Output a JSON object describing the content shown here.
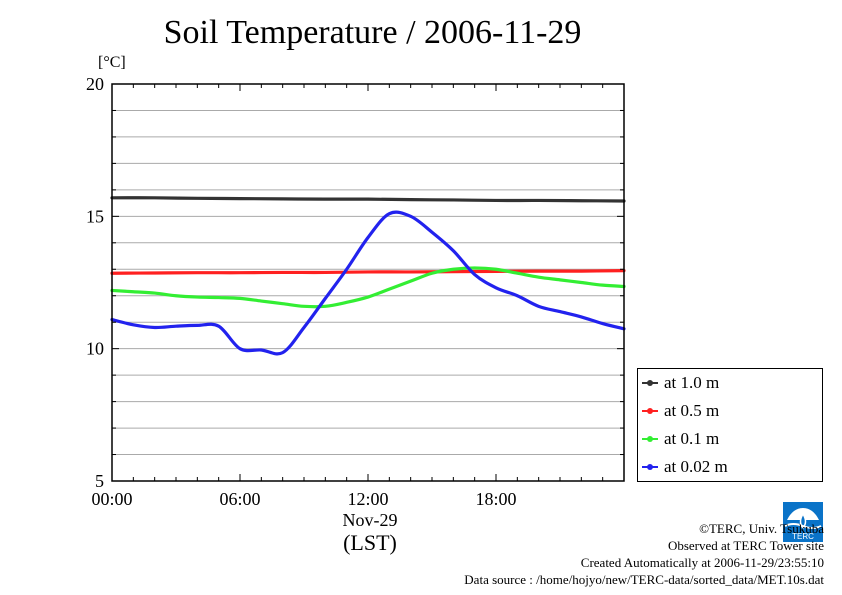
{
  "title": "Soil Temperature / 2006-11-29",
  "unit_label": "[°C]",
  "x_date_label": "Nov-29",
  "x_timezone_label": "(LST)",
  "credits": {
    "copyright": "©TERC, Univ. Tsukuba",
    "observed": "Observed at TERC Tower site",
    "created": "Created Automatically at 2006-11-29/23:55:10",
    "source": "Data source : /home/hojyo/new/TERC-data/sorted_data/MET.10s.dat"
  },
  "logo_text": "TERC",
  "chart_data": {
    "type": "line",
    "title": "Soil Temperature / 2006-11-29",
    "ylabel": "[°C]",
    "xlabel": "(LST)",
    "xlim": [
      0,
      24
    ],
    "ylim": [
      5,
      20
    ],
    "x_ticks": [
      {
        "value": 0,
        "label": "00:00"
      },
      {
        "value": 6,
        "label": "06:00"
      },
      {
        "value": 12,
        "label": "12:00"
      },
      {
        "value": 18,
        "label": "18:00"
      }
    ],
    "y_ticks": [
      {
        "value": 5,
        "label": "5"
      },
      {
        "value": 10,
        "label": "10"
      },
      {
        "value": 15,
        "label": "15"
      },
      {
        "value": 20,
        "label": "20"
      }
    ],
    "y_gridlines": [
      5,
      6,
      7,
      8,
      9,
      10,
      11,
      12,
      13,
      14,
      15,
      16,
      17,
      18,
      19,
      20
    ],
    "grid": true,
    "legend_position": "outside-right-bottom",
    "series": [
      {
        "name": "at 1.0 m",
        "color": "#333333",
        "x": [
          0,
          2,
          4,
          6,
          8,
          10,
          12,
          14,
          16,
          18,
          20,
          22,
          24
        ],
        "y": [
          15.7,
          15.7,
          15.68,
          15.67,
          15.66,
          15.65,
          15.65,
          15.63,
          15.62,
          15.6,
          15.6,
          15.59,
          15.58
        ]
      },
      {
        "name": "at 0.5 m",
        "color": "#ff2020",
        "x": [
          0,
          2,
          4,
          6,
          8,
          10,
          12,
          14,
          16,
          18,
          20,
          22,
          24
        ],
        "y": [
          12.85,
          12.86,
          12.87,
          12.87,
          12.88,
          12.88,
          12.9,
          12.9,
          12.91,
          12.92,
          12.93,
          12.93,
          12.95
        ]
      },
      {
        "name": "at 0.1 m",
        "color": "#33ee33",
        "x": [
          0,
          1,
          2,
          3,
          4,
          5,
          6,
          7,
          8,
          9,
          10,
          11,
          12,
          13,
          14,
          15,
          16,
          17,
          18,
          19,
          20,
          21,
          22,
          23,
          24
        ],
        "y": [
          12.2,
          12.15,
          12.1,
          12.0,
          11.95,
          11.93,
          11.9,
          11.8,
          11.7,
          11.6,
          11.6,
          11.75,
          11.95,
          12.25,
          12.55,
          12.85,
          13.0,
          13.05,
          13.0,
          12.85,
          12.7,
          12.6,
          12.5,
          12.4,
          12.35
        ]
      },
      {
        "name": "at 0.02 m",
        "color": "#2222ee",
        "x": [
          0,
          1,
          2,
          3,
          4,
          5,
          6,
          7,
          8,
          9,
          10,
          11,
          12,
          13,
          14,
          15,
          16,
          17,
          18,
          19,
          20,
          21,
          22,
          23,
          24
        ],
        "y": [
          11.1,
          10.9,
          10.8,
          10.85,
          10.88,
          10.85,
          10.0,
          9.95,
          9.85,
          10.8,
          11.9,
          13.0,
          14.2,
          15.1,
          15.0,
          14.4,
          13.7,
          12.8,
          12.3,
          12.0,
          11.6,
          11.4,
          11.2,
          10.95,
          10.75
        ]
      }
    ]
  }
}
